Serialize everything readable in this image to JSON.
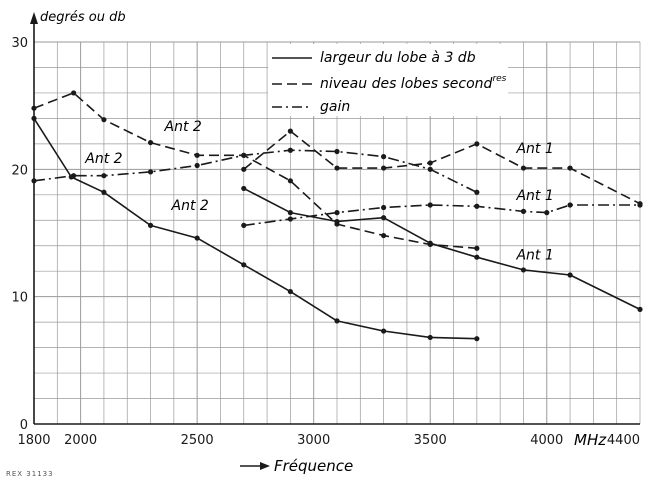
{
  "chart_data": {
    "type": "line",
    "ylabel": "degrés ou db",
    "xlabel": "Fréquence",
    "x_unit": "MHz",
    "xlim": [
      1800,
      4400
    ],
    "ylim": [
      0,
      30
    ],
    "grid": true,
    "x_ticks": [
      1800,
      2000,
      2500,
      3000,
      3500,
      4000,
      4400
    ],
    "y_ticks": [
      0,
      10,
      20,
      30
    ],
    "legend": {
      "position": "top-center",
      "entries": [
        {
          "style": "solid",
          "label": "largeur du lobe à 3 db"
        },
        {
          "style": "dashed",
          "label": "niveau des lobes second",
          "superscript": "res"
        },
        {
          "style": "dashdot",
          "label": "gain"
        }
      ]
    },
    "series": [
      {
        "label": "Ant 2",
        "style": "solid",
        "points": [
          [
            1800,
            24
          ],
          [
            1960,
            19.4
          ],
          [
            2100,
            18.2
          ],
          [
            2300,
            15.6
          ],
          [
            2500,
            14.6
          ],
          [
            2700,
            12.5
          ],
          [
            2900,
            10.4
          ],
          [
            3100,
            8.1
          ],
          [
            3300,
            7.3
          ],
          [
            3500,
            6.8
          ],
          [
            3700,
            6.7
          ]
        ]
      },
      {
        "label": "Ant 2",
        "style": "dashed",
        "points": [
          [
            1800,
            24.8
          ],
          [
            1970,
            26
          ],
          [
            2100,
            23.9
          ],
          [
            2300,
            22.1
          ],
          [
            2500,
            21.1
          ],
          [
            2700,
            21.1
          ],
          [
            2900,
            19.1
          ],
          [
            3100,
            15.7
          ],
          [
            3300,
            14.8
          ],
          [
            3500,
            14.1
          ],
          [
            3700,
            13.8
          ]
        ]
      },
      {
        "label": "Ant 2",
        "style": "dashdot",
        "points": [
          [
            1800,
            19.1
          ],
          [
            1970,
            19.5
          ],
          [
            2100,
            19.5
          ],
          [
            2300,
            19.8
          ],
          [
            2500,
            20.3
          ],
          [
            2700,
            21.1
          ],
          [
            2900,
            21.5
          ],
          [
            3100,
            21.4
          ],
          [
            3300,
            21.0
          ],
          [
            3500,
            20.0
          ],
          [
            3700,
            18.2
          ]
        ]
      },
      {
        "label": "Ant 1",
        "style": "solid",
        "points": [
          [
            2700,
            18.5
          ],
          [
            2900,
            16.6
          ],
          [
            3100,
            15.9
          ],
          [
            3300,
            16.2
          ],
          [
            3500,
            14.2
          ],
          [
            3700,
            13.1
          ],
          [
            3900,
            12.1
          ],
          [
            4100,
            11.7
          ],
          [
            4400,
            9.0
          ]
        ]
      },
      {
        "label": "Ant 1",
        "style": "dashed",
        "points": [
          [
            2700,
            20.0
          ],
          [
            2900,
            23.0
          ],
          [
            3100,
            20.1
          ],
          [
            3300,
            20.1
          ],
          [
            3500,
            20.5
          ],
          [
            3700,
            22.0
          ],
          [
            3900,
            20.1
          ],
          [
            4100,
            20.1
          ],
          [
            4400,
            17.3
          ]
        ]
      },
      {
        "label": "Ant 1",
        "style": "dashdot",
        "points": [
          [
            2700,
            15.6
          ],
          [
            2900,
            16.1
          ],
          [
            3100,
            16.6
          ],
          [
            3300,
            17.0
          ],
          [
            3500,
            17.2
          ],
          [
            3700,
            17.1
          ],
          [
            3900,
            16.7
          ],
          [
            4000,
            16.6
          ],
          [
            4100,
            17.2
          ],
          [
            4400,
            17.2
          ]
        ]
      }
    ],
    "annotations": [
      {
        "text": "Ant 2",
        "x": 2360,
        "y": 23.0
      },
      {
        "text": "Ant 2",
        "x": 2020,
        "y": 20.5
      },
      {
        "text": "Ant 2",
        "x": 2390,
        "y": 16.8
      },
      {
        "text": "Ant 1",
        "x": 3870,
        "y": 21.3
      },
      {
        "text": "Ant 1",
        "x": 3870,
        "y": 17.6
      },
      {
        "text": "Ant 1",
        "x": 3870,
        "y": 12.9
      }
    ]
  },
  "footnote": "REX 31133"
}
